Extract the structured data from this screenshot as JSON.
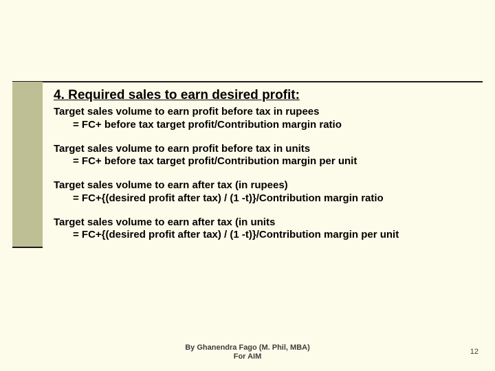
{
  "title": "4. Required sales to earn desired profit:",
  "paragraphs": [
    {
      "lead": "Target sales volume to earn profit before tax in rupees",
      "formula": "= FC+ before tax target profit/Contribution margin ratio"
    },
    {
      "lead": "Target sales volume to earn profit before tax in units",
      "formula": "= FC+ before tax target profit/Contribution margin per unit"
    },
    {
      "lead": "Target sales volume to earn after tax (in rupees)",
      "formula": "= FC+{(desired profit after tax) / (1 -t)}/Contribution margin ratio"
    },
    {
      "lead": "Target sales volume to earn after tax (in units",
      "formula": "= FC+{(desired profit after tax) / (1 -t)}/Contribution margin per unit"
    }
  ],
  "footer_line1": "By Ghanendra Fago (M. Phil, MBA)",
  "footer_line2": "For AIM",
  "page_number": "12",
  "colors": {
    "background": "#fdfcea",
    "sidebar": "#bfbf95",
    "line": "#1a1a1a",
    "text": "#000000",
    "footer_text": "#3d3d3d"
  }
}
